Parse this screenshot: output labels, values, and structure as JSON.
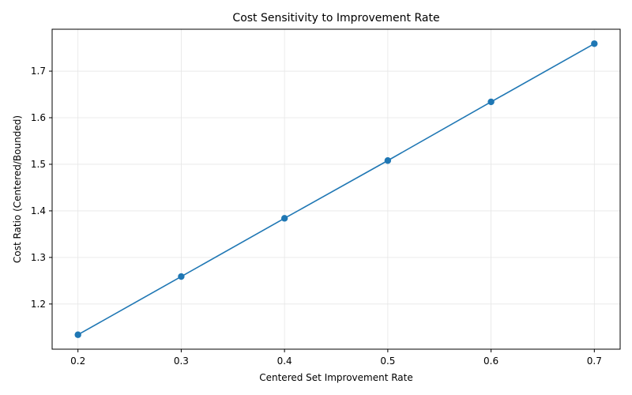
{
  "chart_data": {
    "type": "line",
    "title": "Cost Sensitivity to Improvement Rate",
    "xlabel": "Centered Set Improvement Rate",
    "ylabel": "Cost Ratio (Centered/Bounded)",
    "x": [
      0.2,
      0.3,
      0.4,
      0.5,
      0.6,
      0.7
    ],
    "series": [
      {
        "values": [
          1.134,
          1.259,
          1.384,
          1.508,
          1.634,
          1.759
        ],
        "color": "#1f77b4",
        "marker": "circle"
      }
    ],
    "xlim": [
      0.175,
      0.725
    ],
    "ylim": [
      1.103,
      1.79
    ],
    "xticks": [
      "0.2",
      "0.3",
      "0.4",
      "0.5",
      "0.6",
      "0.7"
    ],
    "yticks": [
      "1.2",
      "1.3",
      "1.4",
      "1.5",
      "1.6",
      "1.7"
    ],
    "grid": true,
    "legend": "none"
  }
}
